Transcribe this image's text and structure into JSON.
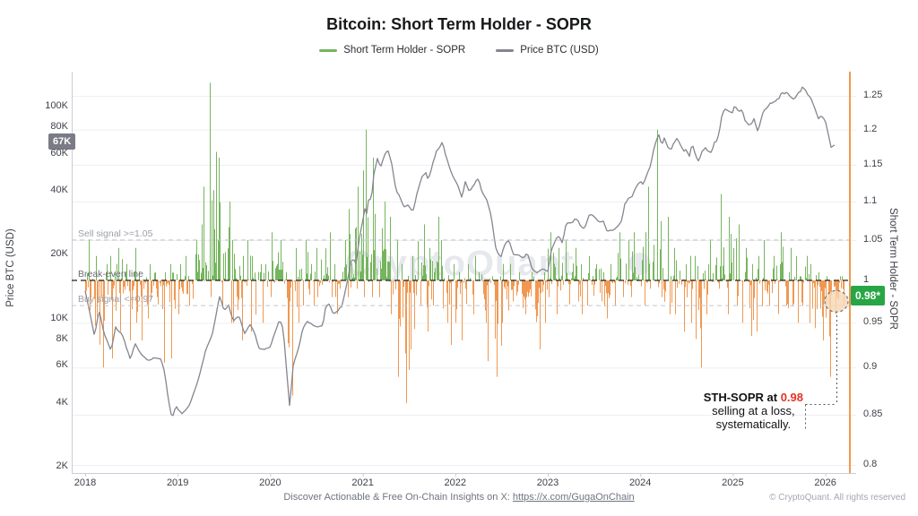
{
  "title": "Bitcoin: Short Term Holder - SOPR",
  "legend": [
    {
      "label": "Short Term Holder - SOPR",
      "color": "#76b55e"
    },
    {
      "label": "Price BTC (USD)",
      "color": "#85858f"
    }
  ],
  "watermark": "CryptoQuant",
  "left_axis": {
    "title": "Price BTC (USD)",
    "ticks": [
      {
        "label": "100K",
        "k": 100
      },
      {
        "label": "80K",
        "k": 80
      },
      {
        "label": "60K",
        "k": 60
      },
      {
        "label": "40K",
        "k": 40
      },
      {
        "label": "20K",
        "k": 20
      },
      {
        "label": "10K",
        "k": 10
      },
      {
        "label": "8K",
        "k": 8
      },
      {
        "label": "6K",
        "k": 6
      },
      {
        "label": "4K",
        "k": 4
      },
      {
        "label": "2K",
        "k": 2
      }
    ]
  },
  "right_axis": {
    "title": "Short Term Holder - SOPR",
    "ticks": [
      {
        "label": "1.25",
        "v": 1.25
      },
      {
        "label": "1.2",
        "v": 1.2
      },
      {
        "label": "1.15",
        "v": 1.15
      },
      {
        "label": "1.1",
        "v": 1.1
      },
      {
        "label": "1.05",
        "v": 1.05
      },
      {
        "label": "1",
        "v": 1
      },
      {
        "label": "0.95",
        "v": 0.95
      },
      {
        "label": "0.9",
        "v": 0.9
      },
      {
        "label": "0.85",
        "v": 0.85
      },
      {
        "label": "0.8",
        "v": 0.8
      }
    ]
  },
  "x_axis": {
    "years": [
      2018,
      2019,
      2020,
      2021,
      2022,
      2023,
      2024,
      2025,
      2026
    ]
  },
  "signals": {
    "sell": {
      "label": "Sell signal >=1.05",
      "value": 1.05,
      "color": "#9ca0a8",
      "line_color": "#c4c8ce"
    },
    "breakeven": {
      "label": "Break-even line",
      "value": 1.0,
      "color": "#6a6d73",
      "line_color": "#1d1d1f"
    },
    "buy": {
      "label": "Buy signal <=0.97",
      "value": 0.97,
      "color": "#9ca0a8",
      "line_color": "#c4c8ce"
    }
  },
  "badges": {
    "price_label": "67K",
    "price_value_kusd": 67,
    "sopr_label": "0.98*",
    "sopr_value": 0.98
  },
  "annotation": {
    "line1_prefix": "STH-SOPR at ",
    "line1_value": "0.98",
    "value_color": "#e53228",
    "line2": "selling at a loss,",
    "line3": "systematically."
  },
  "footer": {
    "prefix": "Discover Actionable & Free On-Chain Insights on X: ",
    "link": "https://x.com/GugaOnChain"
  },
  "copyright": "© CryptoQuant. All rights reserved",
  "chart_data": {
    "type": "mixed",
    "x_range": [
      2018,
      2026.4
    ],
    "left_axis_scale": "log",
    "left_range_kusd": [
      2,
      140
    ],
    "right_axis_scale": "log",
    "right_range": [
      0.8,
      1.27
    ],
    "grid": "horizontal-right-ticks",
    "seed": 11,
    "highlight": {
      "circle_x_year": 2026.12,
      "circle_sopr": 0.975,
      "edge_line_color": "#f09852"
    },
    "series": [
      {
        "name": "Short Term Holder - SOPR",
        "type": "bar",
        "axis": "right",
        "baseline": 1,
        "color_above": "#76b55e",
        "color_below": "#f09852",
        "latest": 0.98,
        "monthly_envelope": {
          "start_year": 2018,
          "step_months": 1,
          "hi": [
            1.05,
            1.03,
            1.02,
            1.03,
            1.04,
            1.02,
            1.04,
            1.02,
            1.02,
            1.01,
            1.01,
            1.02,
            1.02,
            1.03,
            1.05,
            1.12,
            1.27,
            1.16,
            1.1,
            1.05,
            1.03,
            1.05,
            1.02,
            1.02,
            1.06,
            1.05,
            1.01,
            1.04,
            1.05,
            1.02,
            1.04,
            1.06,
            1.02,
            1.05,
            1.09,
            1.12,
            1.2,
            1.16,
            1.1,
            1.08,
            1.05,
            1.02,
            1.03,
            1.07,
            1.04,
            1.08,
            1.05,
            1.02,
            1.01,
            1.02,
            1.03,
            1.01,
            1.005,
            1.005,
            1.02,
            1.02,
            1.01,
            1.01,
            1.005,
            1.01,
            1.06,
            1.04,
            1.05,
            1.04,
            1.02,
            1.03,
            1.02,
            1.01,
            1.02,
            1.06,
            1.05,
            1.06,
            1.06,
            1.12,
            1.2,
            1.08,
            1.04,
            1.02,
            1.03,
            1.03,
            1.02,
            1.05,
            1.11,
            1.08,
            1.07,
            1.04,
            1.02,
            1.03,
            1.05,
            1.03,
            1.06,
            1.04,
            1.03,
            1.03,
            1.02,
            1.01,
            1.005,
            1.005,
            1.005
          ],
          "lo": [
            0.93,
            0.895,
            0.9,
            0.91,
            0.94,
            0.93,
            0.95,
            0.93,
            0.955,
            0.96,
            0.905,
            0.91,
            0.96,
            0.97,
            0.98,
            0.985,
            0.98,
            0.97,
            0.95,
            0.95,
            0.93,
            0.94,
            0.94,
            0.95,
            0.98,
            0.96,
            0.87,
            0.95,
            0.97,
            0.97,
            0.98,
            0.98,
            0.96,
            0.99,
            0.98,
            0.99,
            0.98,
            0.98,
            0.98,
            0.96,
            0.89,
            0.862,
            0.92,
            0.97,
            0.94,
            0.97,
            0.95,
            0.925,
            0.93,
            0.95,
            0.96,
            0.95,
            0.907,
            0.89,
            0.95,
            0.95,
            0.955,
            0.96,
            0.92,
            0.95,
            0.98,
            0.96,
            0.955,
            0.975,
            0.96,
            0.97,
            0.975,
            0.955,
            0.97,
            0.98,
            0.98,
            0.98,
            0.97,
            0.99,
            0.98,
            0.96,
            0.96,
            0.94,
            0.95,
            0.9,
            0.96,
            0.97,
            0.99,
            0.96,
            0.97,
            0.95,
            0.935,
            0.94,
            0.97,
            0.96,
            0.97,
            0.955,
            0.95,
            0.95,
            0.915,
            0.93,
            0.89,
            0.96,
            0.97
          ]
        }
      },
      {
        "name": "Price BTC (USD)",
        "type": "line",
        "axis": "left",
        "color": "#85858f",
        "latest_kusd": 67,
        "points_kusd": [
          [
            2018.0,
            13.5
          ],
          [
            2018.04,
            11.2
          ],
          [
            2018.1,
            8.3
          ],
          [
            2018.15,
            10.9
          ],
          [
            2018.2,
            8.6
          ],
          [
            2018.28,
            7.0
          ],
          [
            2018.33,
            9.2
          ],
          [
            2018.4,
            8.4
          ],
          [
            2018.49,
            6.4
          ],
          [
            2018.54,
            7.6
          ],
          [
            2018.6,
            6.8
          ],
          [
            2018.68,
            6.4
          ],
          [
            2018.75,
            6.6
          ],
          [
            2018.82,
            6.4
          ],
          [
            2018.86,
            5.6
          ],
          [
            2018.9,
            4.1
          ],
          [
            2018.94,
            3.4
          ],
          [
            2018.98,
            3.9
          ],
          [
            2019.05,
            3.5
          ],
          [
            2019.13,
            3.9
          ],
          [
            2019.22,
            5.1
          ],
          [
            2019.3,
            7.1
          ],
          [
            2019.38,
            8.7
          ],
          [
            2019.45,
            12.8
          ],
          [
            2019.5,
            10.8
          ],
          [
            2019.55,
            11.8
          ],
          [
            2019.6,
            9.8
          ],
          [
            2019.66,
            10.3
          ],
          [
            2019.72,
            8.4
          ],
          [
            2019.78,
            9.4
          ],
          [
            2019.83,
            8.6
          ],
          [
            2019.88,
            7.3
          ],
          [
            2019.95,
            7.1
          ],
          [
            2020.0,
            7.2
          ],
          [
            2020.05,
            8.5
          ],
          [
            2020.1,
            9.9
          ],
          [
            2020.14,
            8.9
          ],
          [
            2020.19,
            4.9
          ],
          [
            2020.21,
            3.9
          ],
          [
            2020.25,
            6.2
          ],
          [
            2020.3,
            7.1
          ],
          [
            2020.35,
            8.9
          ],
          [
            2020.4,
            9.7
          ],
          [
            2020.45,
            9.3
          ],
          [
            2020.52,
            9.1
          ],
          [
            2020.57,
            9.3
          ],
          [
            2020.6,
            11.4
          ],
          [
            2020.64,
            11.8
          ],
          [
            2020.68,
            10.4
          ],
          [
            2020.73,
            10.8
          ],
          [
            2020.78,
            11.5
          ],
          [
            2020.8,
            13.1
          ],
          [
            2020.84,
            15.6
          ],
          [
            2020.87,
            18.7
          ],
          [
            2020.9,
            19.4
          ],
          [
            2020.93,
            18.2
          ],
          [
            2020.96,
            23.6
          ],
          [
            2021.0,
            29.0
          ],
          [
            2021.02,
            33.5
          ],
          [
            2021.04,
            30.8
          ],
          [
            2021.07,
            38.5
          ],
          [
            2021.09,
            35.2
          ],
          [
            2021.12,
            48.0
          ],
          [
            2021.16,
            57.5
          ],
          [
            2021.19,
            52.0
          ],
          [
            2021.23,
            59.0
          ],
          [
            2021.27,
            63.5
          ],
          [
            2021.31,
            54.5
          ],
          [
            2021.36,
            40.0
          ],
          [
            2021.41,
            36.5
          ],
          [
            2021.44,
            33.8
          ],
          [
            2021.49,
            34.5
          ],
          [
            2021.54,
            31.8
          ],
          [
            2021.59,
            39.5
          ],
          [
            2021.64,
            46.5
          ],
          [
            2021.68,
            48.8
          ],
          [
            2021.71,
            44.6
          ],
          [
            2021.76,
            54.0
          ],
          [
            2021.8,
            61.5
          ],
          [
            2021.84,
            64.5
          ],
          [
            2021.86,
            68.0
          ],
          [
            2021.9,
            58.0
          ],
          [
            2021.95,
            50.5
          ],
          [
            2021.99,
            46.5
          ],
          [
            2022.03,
            42.0
          ],
          [
            2022.07,
            37.2
          ],
          [
            2022.11,
            44.2
          ],
          [
            2022.15,
            39.2
          ],
          [
            2022.2,
            42.6
          ],
          [
            2022.25,
            46.5
          ],
          [
            2022.29,
            40.2
          ],
          [
            2022.34,
            36.2
          ],
          [
            2022.39,
            30.2
          ],
          [
            2022.44,
            21.5
          ],
          [
            2022.49,
            19.2
          ],
          [
            2022.54,
            22.6
          ],
          [
            2022.58,
            23.8
          ],
          [
            2022.63,
            20.2
          ],
          [
            2022.68,
            19.6
          ],
          [
            2022.73,
            19.3
          ],
          [
            2022.78,
            20.3
          ],
          [
            2022.83,
            17.0
          ],
          [
            2022.88,
            16.3
          ],
          [
            2022.94,
            16.9
          ],
          [
            2023.0,
            16.6
          ],
          [
            2023.04,
            21.2
          ],
          [
            2023.08,
            23.3
          ],
          [
            2023.12,
            24.6
          ],
          [
            2023.16,
            22.4
          ],
          [
            2023.2,
            28.2
          ],
          [
            2023.26,
            28.4
          ],
          [
            2023.3,
            29.8
          ],
          [
            2023.36,
            26.9
          ],
          [
            2023.4,
            26.8
          ],
          [
            2023.45,
            30.6
          ],
          [
            2023.5,
            30.2
          ],
          [
            2023.56,
            29.2
          ],
          [
            2023.6,
            28.9
          ],
          [
            2023.64,
            25.9
          ],
          [
            2023.7,
            26.2
          ],
          [
            2023.76,
            27.2
          ],
          [
            2023.8,
            29.1
          ],
          [
            2023.83,
            34.6
          ],
          [
            2023.87,
            36.8
          ],
          [
            2023.91,
            37.5
          ],
          [
            2023.96,
            42.8
          ],
          [
            2024.0,
            44.2
          ],
          [
            2024.03,
            42.6
          ],
          [
            2024.07,
            47.8
          ],
          [
            2024.11,
            52.2
          ],
          [
            2024.14,
            61.8
          ],
          [
            2024.17,
            68.2
          ],
          [
            2024.2,
            72.8
          ],
          [
            2024.23,
            64.8
          ],
          [
            2024.26,
            70.6
          ],
          [
            2024.3,
            63.8
          ],
          [
            2024.33,
            62.6
          ],
          [
            2024.36,
            67.4
          ],
          [
            2024.4,
            70.6
          ],
          [
            2024.43,
            66.2
          ],
          [
            2024.47,
            61.2
          ],
          [
            2024.5,
            63.4
          ],
          [
            2024.53,
            57.8
          ],
          [
            2024.56,
            66.8
          ],
          [
            2024.6,
            58.8
          ],
          [
            2024.63,
            54.8
          ],
          [
            2024.67,
            61.2
          ],
          [
            2024.7,
            64.4
          ],
          [
            2024.74,
            62.2
          ],
          [
            2024.77,
            60.6
          ],
          [
            2024.8,
            67.4
          ],
          [
            2024.83,
            69.6
          ],
          [
            2024.85,
            75.8
          ],
          [
            2024.88,
            90.4
          ],
          [
            2024.91,
            98.2
          ],
          [
            2024.94,
            96.4
          ],
          [
            2024.97,
            94.8
          ],
          [
            2025.0,
            94.4
          ],
          [
            2025.02,
            102.2
          ],
          [
            2025.05,
            97.2
          ],
          [
            2025.08,
            96.4
          ],
          [
            2025.1,
            97.8
          ],
          [
            2025.13,
            86.2
          ],
          [
            2025.16,
            84.2
          ],
          [
            2025.2,
            82.6
          ],
          [
            2025.23,
            87.2
          ],
          [
            2025.27,
            76.8
          ],
          [
            2025.3,
            85.2
          ],
          [
            2025.33,
            94.2
          ],
          [
            2025.36,
            97.2
          ],
          [
            2025.4,
            103.6
          ],
          [
            2025.43,
            104.2
          ],
          [
            2025.46,
            106.2
          ],
          [
            2025.5,
            108.2
          ],
          [
            2025.53,
            118.2
          ],
          [
            2025.56,
            115.8
          ],
          [
            2025.58,
            117.6
          ],
          [
            2025.61,
            113.4
          ],
          [
            2025.64,
            111.2
          ],
          [
            2025.67,
            109.2
          ],
          [
            2025.7,
            114.2
          ],
          [
            2025.73,
            117.2
          ],
          [
            2025.75,
            123.8
          ],
          [
            2025.78,
            121.8
          ],
          [
            2025.81,
            114.4
          ],
          [
            2025.84,
            109.8
          ],
          [
            2025.86,
            104.2
          ],
          [
            2025.89,
            96.2
          ],
          [
            2025.91,
            91.4
          ],
          [
            2025.93,
            87.2
          ],
          [
            2025.95,
            92.2
          ],
          [
            2025.98,
            88.2
          ],
          [
            2026.0,
            84.8
          ],
          [
            2026.03,
            74.8
          ],
          [
            2026.06,
            63.8
          ],
          [
            2026.12,
            67.0
          ]
        ]
      }
    ]
  }
}
